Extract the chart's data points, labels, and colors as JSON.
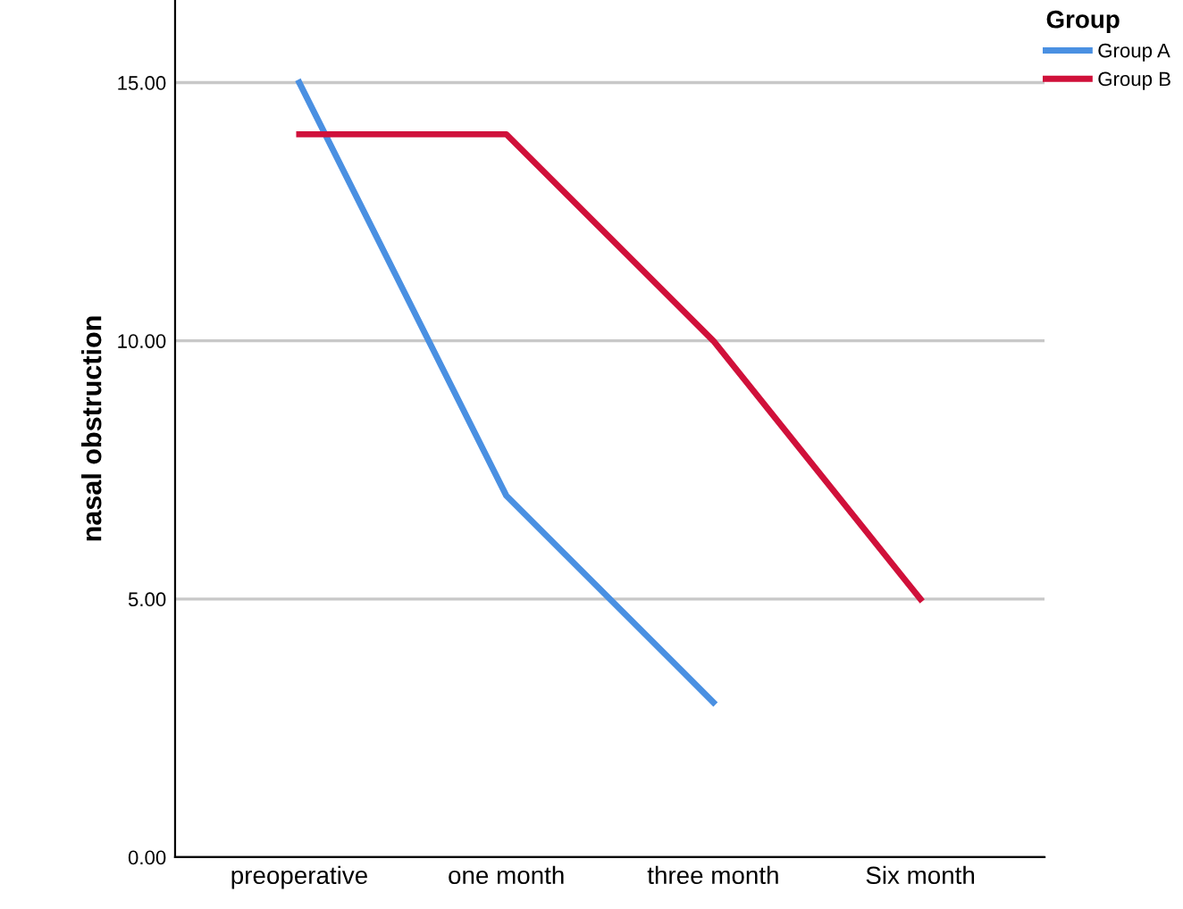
{
  "chart_data": {
    "type": "line",
    "ylabel": "nasal obstruction",
    "legend_title": "Group",
    "categories": [
      "preoperative",
      "one month",
      "three month",
      "Six month"
    ],
    "series": [
      {
        "name": "Group A",
        "color": "#4a90e2",
        "values": [
          15,
          7,
          3,
          null
        ]
      },
      {
        "name": "Group B",
        "color": "#d0103a",
        "values": [
          14,
          14,
          10,
          5
        ]
      }
    ],
    "ylim": [
      0,
      16.6
    ],
    "yticks": [
      {
        "value": 0,
        "label": "0.00"
      },
      {
        "value": 5,
        "label": "5.00"
      },
      {
        "value": 10,
        "label": "10.00"
      },
      {
        "value": 15,
        "label": "15.00"
      }
    ],
    "grid": "y",
    "legend": "top right",
    "marker": "none",
    "line_style": "solid"
  }
}
